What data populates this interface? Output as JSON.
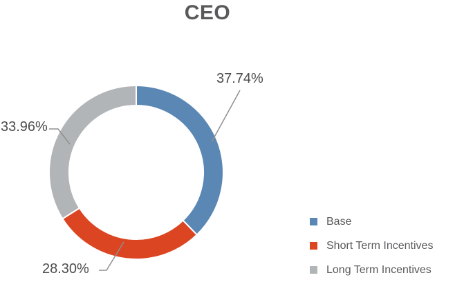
{
  "title": "CEO",
  "chart_data": {
    "type": "pie",
    "subtype": "donut",
    "title": "CEO",
    "start_angle_deg": 0,
    "direction": "clockwise",
    "inner_radius_ratio": 0.77,
    "legend_position": "right",
    "leader_line_color": "#8f8f8f",
    "separator_color": "#ffffff",
    "slices": [
      {
        "name": "Base",
        "value": 37.74,
        "label": "37.74%",
        "color": "#5a87b4"
      },
      {
        "name": "Short Term Incentives",
        "value": 28.3,
        "label": "28.30%",
        "color": "#dc4522"
      },
      {
        "name": "Long Term Incentives",
        "value": 33.96,
        "label": "33.96%",
        "color": "#b2b5b7"
      }
    ]
  }
}
